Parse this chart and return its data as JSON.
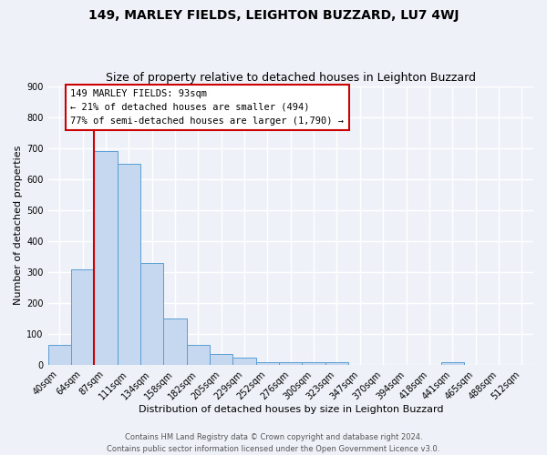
{
  "title": "149, MARLEY FIELDS, LEIGHTON BUZZARD, LU7 4WJ",
  "subtitle": "Size of property relative to detached houses in Leighton Buzzard",
  "xlabel": "Distribution of detached houses by size in Leighton Buzzard",
  "ylabel": "Number of detached properties",
  "bin_labels": [
    "40sqm",
    "64sqm",
    "87sqm",
    "111sqm",
    "134sqm",
    "158sqm",
    "182sqm",
    "205sqm",
    "229sqm",
    "252sqm",
    "276sqm",
    "300sqm",
    "323sqm",
    "347sqm",
    "370sqm",
    "394sqm",
    "418sqm",
    "441sqm",
    "465sqm",
    "488sqm",
    "512sqm"
  ],
  "bar_values": [
    65,
    308,
    690,
    650,
    330,
    150,
    65,
    35,
    22,
    10,
    10,
    10,
    8,
    0,
    0,
    0,
    0,
    10,
    0,
    0,
    0
  ],
  "bar_color": "#c5d8f0",
  "bar_edge_color": "#5a9fd4",
  "vline_x": 1.5,
  "vline_color": "#cc0000",
  "annotation_text": "149 MARLEY FIELDS: 93sqm\n← 21% of detached houses are smaller (494)\n77% of semi-detached houses are larger (1,790) →",
  "annotation_box_color": "#ffffff",
  "annotation_box_edge": "#cc0000",
  "ylim": [
    0,
    900
  ],
  "yticks": [
    0,
    100,
    200,
    300,
    400,
    500,
    600,
    700,
    800,
    900
  ],
  "footer": "Contains HM Land Registry data © Crown copyright and database right 2024.\nContains public sector information licensed under the Open Government Licence v3.0.",
  "bg_color": "#eef2f8",
  "grid_color": "#ffffff",
  "title_fontsize": 10,
  "subtitle_fontsize": 9,
  "axis_fontsize": 8,
  "tick_fontsize": 7,
  "footer_fontsize": 6
}
